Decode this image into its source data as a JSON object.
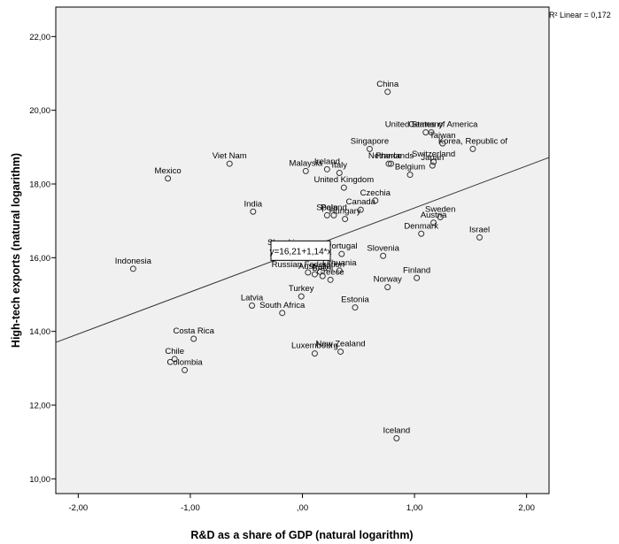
{
  "chart_data": {
    "type": "scatter",
    "xlabel": "R&D as a share of GDP (natural logarithm)",
    "ylabel": "High-tech exports (natural logarithm)",
    "xlim": [
      -2.2,
      2.2
    ],
    "ylim": [
      9.6,
      22.8
    ],
    "xticks": [
      -2.0,
      -1.0,
      0.0,
      1.0,
      2.0
    ],
    "xtick_labels": [
      "-2,00",
      "-1,00",
      ",00",
      "1,00",
      "2,00"
    ],
    "yticks": [
      10,
      12,
      14,
      16,
      18,
      20,
      22
    ],
    "ytick_labels": [
      "10,00",
      "12,00",
      "14,00",
      "16,00",
      "18,00",
      "20,00",
      "22,00"
    ],
    "grid": false,
    "fit_line": {
      "equation_label": "y=16,21+1,14*x",
      "r2_label": "R² Linear = 0,172",
      "intercept": 16.21,
      "slope": 1.14
    },
    "points": [
      {
        "label": "China",
        "x": 0.76,
        "y": 20.5
      },
      {
        "label": "United States of America",
        "x": 1.15,
        "y": 19.4
      },
      {
        "label": "Singapore",
        "x": 0.6,
        "y": 18.95
      },
      {
        "label": "Germany",
        "x": 1.1,
        "y": 19.4
      },
      {
        "label": "Taiwan",
        "x": 1.25,
        "y": 19.1
      },
      {
        "label": "Korea, Republic of",
        "x": 1.52,
        "y": 18.95
      },
      {
        "label": "France",
        "x": 0.77,
        "y": 18.55
      },
      {
        "label": "Switzerland",
        "x": 1.17,
        "y": 18.6
      },
      {
        "label": "Netherlands",
        "x": 0.79,
        "y": 18.55
      },
      {
        "label": "Japan",
        "x": 1.16,
        "y": 18.5
      },
      {
        "label": "Malaysia",
        "x": 0.03,
        "y": 18.35
      },
      {
        "label": "Ireland",
        "x": 0.22,
        "y": 18.4
      },
      {
        "label": "Italy",
        "x": 0.33,
        "y": 18.3
      },
      {
        "label": "United Kingdom",
        "x": 0.37,
        "y": 17.9
      },
      {
        "label": "Belgium",
        "x": 0.96,
        "y": 18.25
      },
      {
        "label": "Viet Nam",
        "x": -0.65,
        "y": 18.55
      },
      {
        "label": "Mexico",
        "x": -1.2,
        "y": 18.15
      },
      {
        "label": "India",
        "x": -0.44,
        "y": 17.25
      },
      {
        "label": "Spain",
        "x": 0.22,
        "y": 17.15
      },
      {
        "label": "Canada",
        "x": 0.52,
        "y": 17.3
      },
      {
        "label": "Sweden",
        "x": 1.23,
        "y": 17.1
      },
      {
        "label": "Czechia",
        "x": 0.65,
        "y": 17.55
      },
      {
        "label": "Poland",
        "x": 0.28,
        "y": 17.15
      },
      {
        "label": "Hungary",
        "x": 0.38,
        "y": 17.05
      },
      {
        "label": "Austria",
        "x": 1.17,
        "y": 16.95
      },
      {
        "label": "Israel",
        "x": 1.58,
        "y": 16.55
      },
      {
        "label": "Denmark",
        "x": 1.06,
        "y": 16.65
      },
      {
        "label": "Slovakia",
        "x": -0.17,
        "y": 16.2
      },
      {
        "label": "Slovenia",
        "x": 0.72,
        "y": 16.05
      },
      {
        "label": "Portugal",
        "x": 0.35,
        "y": 16.1
      },
      {
        "label": "Russian Federation",
        "x": 0.05,
        "y": 15.6
      },
      {
        "label": "Australia",
        "x": 0.11,
        "y": 15.55
      },
      {
        "label": "Finland",
        "x": 1.02,
        "y": 15.45
      },
      {
        "label": "Norway",
        "x": 0.76,
        "y": 15.2
      },
      {
        "label": "Brazil",
        "x": 0.18,
        "y": 15.5
      },
      {
        "label": "Greece",
        "x": 0.25,
        "y": 15.4
      },
      {
        "label": "Turkey",
        "x": -0.01,
        "y": 14.95
      },
      {
        "label": "Lithuania",
        "x": 0.33,
        "y": 15.65
      },
      {
        "label": "Latvia",
        "x": -0.45,
        "y": 14.7
      },
      {
        "label": "Estonia",
        "x": 0.47,
        "y": 14.65
      },
      {
        "label": "South Africa",
        "x": -0.18,
        "y": 14.5
      },
      {
        "label": "Costa Rica",
        "x": -0.97,
        "y": 13.8
      },
      {
        "label": "Luxembourg",
        "x": 0.11,
        "y": 13.4
      },
      {
        "label": "New Zealand",
        "x": 0.34,
        "y": 13.45
      },
      {
        "label": "Chile",
        "x": -1.14,
        "y": 13.25
      },
      {
        "label": "Colombia",
        "x": -1.05,
        "y": 12.95
      },
      {
        "label": "Indonesia",
        "x": -1.51,
        "y": 15.7
      },
      {
        "label": "Iceland",
        "x": 0.84,
        "y": 11.1
      }
    ]
  }
}
